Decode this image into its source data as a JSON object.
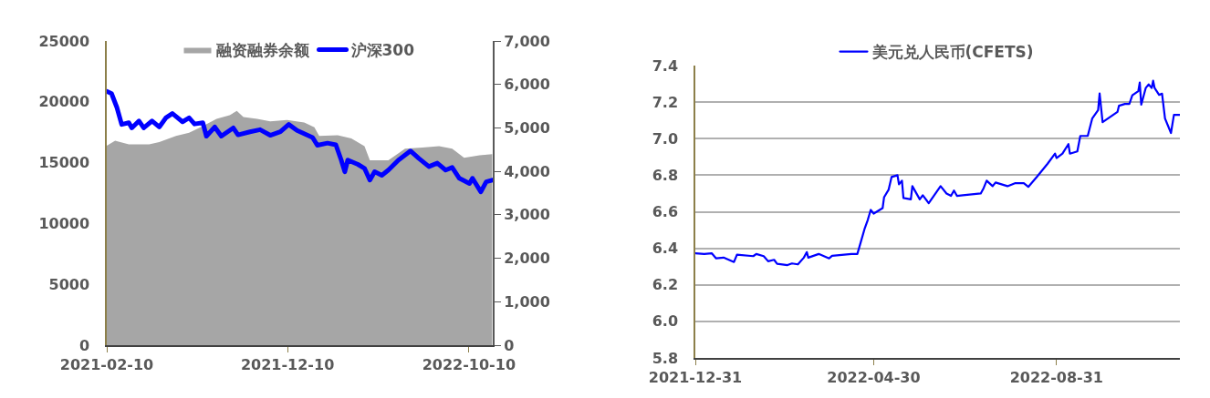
{
  "chart_data": [
    {
      "type": "area",
      "xlim": [
        "2021-02-10",
        "2022-11-19"
      ],
      "xticks": [
        "2021-02-10",
        "2021-12-10",
        "2022-10-10"
      ],
      "ylim": [
        0,
        25000
      ],
      "yticks": [
        0,
        5000,
        10000,
        15000,
        20000,
        25000
      ],
      "y2lim": [
        0,
        7000
      ],
      "y2ticks": [
        {
          "value": 0,
          "label": "0"
        },
        {
          "value": 1000,
          "label": "1,000"
        },
        {
          "value": 2000,
          "label": "2,000"
        },
        {
          "value": 3000,
          "label": "3,000"
        },
        {
          "value": 4000,
          "label": "4,000"
        },
        {
          "value": 5000,
          "label": "5,000"
        },
        {
          "value": 6000,
          "label": "6,000"
        },
        {
          "value": 7000,
          "label": "7,000"
        }
      ],
      "legend": "top",
      "grid": false,
      "series": [
        {
          "name": "融资融券余额",
          "type": "area",
          "color": "#a6a6a6",
          "x": [
            "2021-02-10",
            "2021-02-24",
            "2021-03-19",
            "2021-04-22",
            "2021-05-09",
            "2021-06-06",
            "2021-06-28",
            "2021-07-21",
            "2021-08-13",
            "2021-09-04",
            "2021-09-16",
            "2021-09-27",
            "2021-10-20",
            "2021-11-11",
            "2021-12-09",
            "2022-01-07",
            "2022-01-24",
            "2022-02-01",
            "2022-03-04",
            "2022-03-27",
            "2022-04-18",
            "2022-04-27",
            "2022-05-28",
            "2022-06-25",
            "2022-07-24",
            "2022-08-21",
            "2022-09-12",
            "2022-10-02",
            "2022-10-28",
            "2022-11-18"
          ],
          "values": [
            16400,
            16800,
            16500,
            16500,
            16700,
            17200,
            17450,
            18000,
            18600,
            18900,
            19250,
            18750,
            18600,
            18400,
            18500,
            18300,
            17900,
            17200,
            17250,
            17000,
            16350,
            15200,
            15200,
            16150,
            16250,
            16350,
            16150,
            15400,
            15600,
            15700
          ]
        },
        {
          "name": "沪深300",
          "type": "line",
          "axis": "y2",
          "color": "#0000ff",
          "x": [
            "2021-02-10",
            "2021-02-18",
            "2021-02-27",
            "2021-03-07",
            "2021-03-19",
            "2021-03-24",
            "2021-04-05",
            "2021-04-13",
            "2021-04-27",
            "2021-05-09",
            "2021-05-20",
            "2021-05-31",
            "2021-06-17",
            "2021-06-28",
            "2021-07-07",
            "2021-07-21",
            "2021-07-27",
            "2021-08-10",
            "2021-08-21",
            "2021-09-10",
            "2021-09-18",
            "2021-10-08",
            "2021-10-25",
            "2021-11-11",
            "2021-11-28",
            "2021-12-12",
            "2021-12-26",
            "2022-01-21",
            "2022-01-29",
            "2022-02-15",
            "2022-03-01",
            "2022-03-10",
            "2022-03-16",
            "2022-03-21",
            "2022-04-07",
            "2022-04-18",
            "2022-04-27",
            "2022-05-05",
            "2022-05-17",
            "2022-05-28",
            "2022-06-14",
            "2022-07-04",
            "2022-07-18",
            "2022-08-04",
            "2022-08-18",
            "2022-09-01",
            "2022-09-12",
            "2022-09-24",
            "2022-10-11",
            "2022-10-16",
            "2022-10-30",
            "2022-11-08",
            "2022-11-19"
          ],
          "values": [
            5840,
            5790,
            5470,
            5080,
            5120,
            5000,
            5160,
            5000,
            5160,
            5020,
            5230,
            5330,
            5140,
            5230,
            5090,
            5120,
            4810,
            5020,
            4810,
            5000,
            4840,
            4910,
            4960,
            4830,
            4910,
            5080,
            4940,
            4780,
            4600,
            4650,
            4610,
            4260,
            3990,
            4260,
            4160,
            4070,
            3800,
            3990,
            3910,
            4030,
            4260,
            4470,
            4300,
            4110,
            4190,
            4030,
            4090,
            3840,
            3720,
            3840,
            3530,
            3760,
            3800
          ]
        }
      ]
    },
    {
      "type": "line",
      "xlim": [
        "2021-12-31",
        "2022-11-22"
      ],
      "xticks": [
        "2021-12-31",
        "2022-04-30",
        "2022-08-31"
      ],
      "ylim": [
        5.8,
        7.4
      ],
      "yticks": [
        {
          "value": 5.8,
          "label": "5.8"
        },
        {
          "value": 6.0,
          "label": "6.0"
        },
        {
          "value": 6.2,
          "label": "6.2"
        },
        {
          "value": 6.4,
          "label": "6.4"
        },
        {
          "value": 6.6,
          "label": "6.6"
        },
        {
          "value": 6.8,
          "label": "6.8"
        },
        {
          "value": 7.0,
          "label": "7.0"
        },
        {
          "value": 7.2,
          "label": "7.2"
        },
        {
          "value": 7.4,
          "label": "7.4"
        }
      ],
      "legend": "top",
      "grid": "y",
      "series": [
        {
          "name": "美元兑人民币(CFETS)",
          "color": "#0000ff",
          "x": [
            "2021-12-31",
            "2022-01-06",
            "2022-01-11",
            "2022-01-14",
            "2022-01-19",
            "2022-01-26",
            "2022-01-28",
            "2022-02-08",
            "2022-02-10",
            "2022-02-15",
            "2022-02-18",
            "2022-02-22",
            "2022-02-24",
            "2022-03-03",
            "2022-03-06",
            "2022-03-10",
            "2022-03-14",
            "2022-03-16",
            "2022-03-17",
            "2022-03-24",
            "2022-03-31",
            "2022-04-02",
            "2022-04-15",
            "2022-04-19",
            "2022-04-24",
            "2022-04-26",
            "2022-04-28",
            "2022-04-30",
            "2022-05-06",
            "2022-05-07",
            "2022-05-10",
            "2022-05-12",
            "2022-05-16",
            "2022-05-17",
            "2022-05-19",
            "2022-05-20",
            "2022-05-25",
            "2022-05-26",
            "2022-05-31",
            "2022-06-02",
            "2022-06-06",
            "2022-06-14",
            "2022-06-18",
            "2022-06-21",
            "2022-06-23",
            "2022-06-25",
            "2022-06-29",
            "2022-07-11",
            "2022-07-13",
            "2022-07-15",
            "2022-07-19",
            "2022-07-21",
            "2022-07-29",
            "2022-08-03",
            "2022-08-09",
            "2022-08-12",
            "2022-08-18",
            "2022-08-25",
            "2022-08-30",
            "2022-08-31",
            "2022-09-04",
            "2022-09-08",
            "2022-09-09",
            "2022-09-14",
            "2022-09-16",
            "2022-09-21",
            "2022-09-24",
            "2022-09-28",
            "2022-09-29",
            "2022-10-01",
            "2022-10-11",
            "2022-10-12",
            "2022-10-16",
            "2022-10-19",
            "2022-10-21",
            "2022-10-25",
            "2022-10-26",
            "2022-10-27",
            "2022-10-30",
            "2022-11-01",
            "2022-11-03",
            "2022-11-04",
            "2022-11-05",
            "2022-11-08",
            "2022-11-10",
            "2022-11-12",
            "2022-11-16",
            "2022-11-18",
            "2022-11-22"
          ],
          "values": [
            6.373,
            6.369,
            6.373,
            6.345,
            6.349,
            6.325,
            6.365,
            6.357,
            6.369,
            6.357,
            6.329,
            6.337,
            6.315,
            6.308,
            6.317,
            6.312,
            6.349,
            6.379,
            6.349,
            6.369,
            6.345,
            6.359,
            6.369,
            6.369,
            6.51,
            6.555,
            6.61,
            6.59,
            6.62,
            6.68,
            6.72,
            6.79,
            6.8,
            6.75,
            6.77,
            6.675,
            6.668,
            6.74,
            6.668,
            6.69,
            6.647,
            6.74,
            6.7,
            6.687,
            6.716,
            6.687,
            6.69,
            6.7,
            6.73,
            6.77,
            6.74,
            6.76,
            6.74,
            6.756,
            6.756,
            6.736,
            6.793,
            6.863,
            6.918,
            6.894,
            6.918,
            6.97,
            6.918,
            6.93,
            7.015,
            7.015,
            7.11,
            7.156,
            7.247,
            7.09,
            7.146,
            7.18,
            7.19,
            7.19,
            7.237,
            7.26,
            7.307,
            7.186,
            7.277,
            7.297,
            7.277,
            7.317,
            7.277,
            7.24,
            7.246,
            7.11,
            7.031,
            7.13,
            7.13
          ]
        }
      ]
    }
  ]
}
